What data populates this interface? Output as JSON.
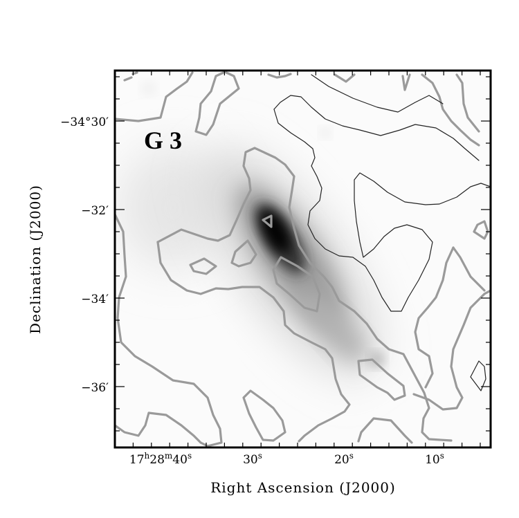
{
  "chart_data": {
    "type": "heatmap",
    "title": "",
    "panel_label": "G 3",
    "xlabel": "Right Ascension (J2000)",
    "ylabel": "Declination (J2000)",
    "x_ticks": [
      {
        "label": "17h28m40s",
        "ra_s": 40
      },
      {
        "label": "30s",
        "ra_s": 30
      },
      {
        "label": "20s",
        "ra_s": 20
      },
      {
        "label": "10s",
        "ra_s": 10
      }
    ],
    "y_ticks": [
      {
        "label": "−34°30′",
        "dec_arcmin": -30
      },
      {
        "label": "−32′",
        "dec_arcmin": -32
      },
      {
        "label": "−34′",
        "dec_arcmin": -34
      },
      {
        "label": "−36′",
        "dec_arcmin": -36
      }
    ],
    "x_axis_unit": "seconds of RA past 17h28m",
    "y_axis_unit": "arcmin relative to −34°",
    "xlim": [
      40,
      10
    ],
    "ylim": [
      -37,
      -28.5
    ],
    "colormap": "grayscale (white = low, black = high)",
    "contour_colors": [
      "#9a9a9a",
      "#222222"
    ]
  }
}
